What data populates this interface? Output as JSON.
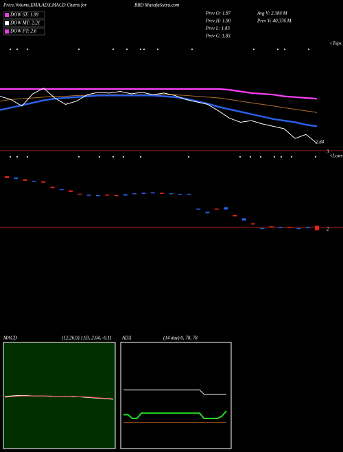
{
  "header": {
    "title": "Price,Volume,EMA,ADX,MACD Charts for",
    "symbol": "BBD",
    "site": "MunafaSutra.com"
  },
  "dow": [
    {
      "label": "DOW ST: 1.99",
      "color": "#e040e0"
    },
    {
      "label": "DOW MT: 2.21",
      "color": "#ffffff"
    },
    {
      "label": "DOW PT: 2.6",
      "color": "#e040e0"
    }
  ],
  "stats": [
    "Prev  O: 1.87",
    "Prev  H: 1.90",
    "Prev  L: 1.83",
    "Prev  C: 1.83",
    "Avg  V: 2.384  M",
    "Prev  V: 40.376  M"
  ],
  "annotations": [
    "<Tops",
    "<Lows",
    "2.84",
    "3",
    "2"
  ],
  "chart_data": [
    {
      "type": "line",
      "ylim": [
        2.75,
        4.1
      ],
      "yticks": [],
      "series": [
        {
          "color": "#ff40ff",
          "width": 2.2,
          "values": [
            3.51,
            3.51,
            3.51,
            3.51,
            3.51,
            3.51,
            3.51,
            3.51,
            3.51,
            3.51,
            3.51,
            3.51,
            3.51,
            3.51,
            3.51,
            3.51,
            3.51,
            3.51,
            3.51,
            3.51,
            3.51,
            3.5,
            3.48,
            3.46,
            3.45,
            3.44,
            3.42,
            3.41,
            3.4,
            3.39
          ]
        },
        {
          "color": "#b07030",
          "width": 1,
          "values": [
            3.36,
            3.38,
            3.39,
            3.4,
            3.41,
            3.42,
            3.42,
            3.43,
            3.43,
            3.44,
            3.44,
            3.44,
            3.44,
            3.44,
            3.44,
            3.44,
            3.44,
            3.43,
            3.42,
            3.41,
            3.4,
            3.38,
            3.36,
            3.34,
            3.32,
            3.3,
            3.28,
            3.26,
            3.24,
            3.22
          ]
        },
        {
          "color": "#2a5fe8",
          "width": 2.5,
          "values": [
            3.25,
            3.28,
            3.31,
            3.34,
            3.37,
            3.39,
            3.4,
            3.41,
            3.42,
            3.43,
            3.43,
            3.43,
            3.43,
            3.43,
            3.43,
            3.42,
            3.41,
            3.39,
            3.36,
            3.33,
            3.29,
            3.26,
            3.23,
            3.2,
            3.17,
            3.14,
            3.12,
            3.1,
            3.07,
            3.05
          ]
        },
        {
          "color": "#ffffff",
          "width": 1,
          "values": [
            3.42,
            3.38,
            3.3,
            3.45,
            3.52,
            3.4,
            3.32,
            3.36,
            3.44,
            3.47,
            3.46,
            3.48,
            3.45,
            3.47,
            3.44,
            3.46,
            3.43,
            3.38,
            3.35,
            3.32,
            3.24,
            3.15,
            3.1,
            3.12,
            3.08,
            3.05,
            3.02,
            2.9,
            2.95,
            2.84
          ]
        }
      ]
    },
    {
      "type": "candlestick",
      "ylim": [
        1.7,
        3.4
      ],
      "yticks": [],
      "open": [
        3.22,
        3.16,
        3.15,
        3.1,
        3.11,
        2.99,
        2.92,
        2.91,
        2.84,
        2.8,
        2.79,
        2.82,
        2.81,
        2.8,
        2.83,
        2.84,
        2.85,
        2.86,
        2.85,
        2.84,
        2.83,
        2.5,
        2.42,
        2.52,
        2.5,
        2.38,
        2.26,
        2.2,
        2.08,
        2.14,
        2.1,
        2.12,
        2.08,
        2.1,
        2.15
      ],
      "close": [
        3.18,
        3.19,
        3.12,
        3.12,
        3.08,
        2.96,
        2.94,
        2.88,
        2.82,
        2.82,
        2.81,
        2.8,
        2.8,
        2.83,
        2.85,
        2.86,
        2.87,
        2.85,
        2.85,
        2.84,
        2.84,
        2.52,
        2.45,
        2.5,
        2.55,
        2.35,
        2.31,
        2.18,
        2.1,
        2.12,
        2.12,
        2.1,
        2.1,
        2.12,
        2.05
      ]
    },
    {
      "type": "line",
      "title": "MACD",
      "subtitle": "(12,26,9) 1.93,  2.04,  -0.11",
      "ylim": [
        -1,
        1
      ],
      "yticks": [],
      "series": [
        {
          "color": "#ffffff",
          "width": 1,
          "values": [
            0.02,
            0.03,
            0.04,
            0.04,
            0.04,
            0.03,
            0.03,
            0.03,
            0.02,
            0.02,
            0.02,
            0.02,
            0.01,
            0.01,
            0.0,
            -0.01,
            -0.02,
            -0.03,
            -0.04,
            -0.05
          ]
        },
        {
          "color": "#ff5050",
          "width": 1,
          "values": [
            0.0,
            0.01,
            0.02,
            0.03,
            0.03,
            0.03,
            0.03,
            0.03,
            0.03,
            0.02,
            0.02,
            0.02,
            0.02,
            0.01,
            0.01,
            0.0,
            -0.01,
            -0.02,
            -0.03,
            -0.04
          ]
        }
      ]
    },
    {
      "type": "line",
      "title": "ADX",
      "subtitle": "(14  day) 0,  78,  78",
      "ylim": [
        0,
        100
      ],
      "yticks": [],
      "series": [
        {
          "color": "#ffffff",
          "width": 1,
          "values": [
            78,
            78,
            78,
            78,
            78,
            78,
            78,
            78,
            78,
            78,
            78,
            78,
            78,
            78,
            78,
            78,
            78,
            78,
            72,
            72,
            72,
            72,
            72,
            72
          ]
        },
        {
          "color": "#20e020",
          "width": 2,
          "values": [
            45,
            45,
            40,
            40,
            47,
            47,
            47,
            47,
            47,
            47,
            47,
            47,
            47,
            47,
            47,
            47,
            47,
            47,
            40,
            40,
            40,
            40,
            43,
            50
          ]
        },
        {
          "color": "#c06020",
          "width": 1,
          "values": [
            35,
            35,
            35,
            35,
            35,
            35,
            35,
            35,
            35,
            35,
            35,
            35,
            35,
            35,
            35,
            35,
            35,
            35,
            35,
            35,
            35,
            35,
            35,
            35
          ]
        }
      ]
    }
  ]
}
